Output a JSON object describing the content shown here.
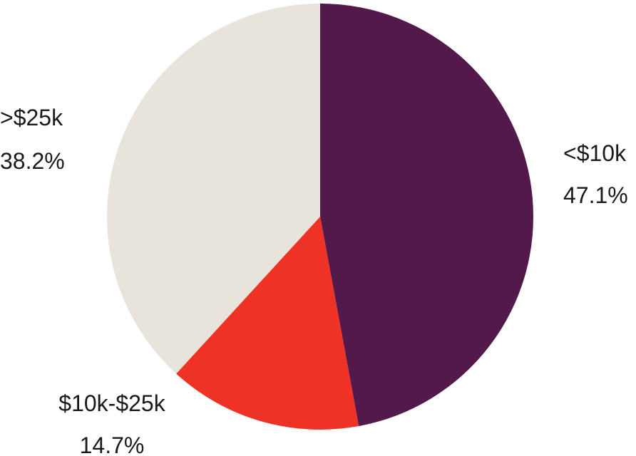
{
  "chart_data": {
    "type": "pie",
    "start_angle_deg": 0,
    "direction": "clockwise",
    "slices": [
      {
        "label": "<$10k",
        "value": 47.1,
        "value_label": "47.1%",
        "color": "#52194a"
      },
      {
        "label": "$10k-$25k",
        "value": 14.7,
        "value_label": "14.7%",
        "color": "#ee3326"
      },
      {
        "label": ">$25k",
        "value": 38.2,
        "value_label": "38.2%",
        "color": "#e8e4dc"
      }
    ]
  }
}
